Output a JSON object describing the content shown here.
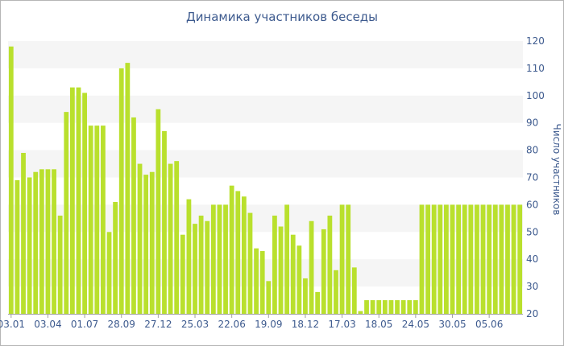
{
  "chart_data": {
    "type": "bar",
    "title": "Динамика участников беседы",
    "xlabel": "",
    "ylabel": "Число участников",
    "ylim": [
      20,
      120
    ],
    "yticks": [
      20,
      30,
      40,
      50,
      60,
      70,
      80,
      90,
      100,
      110,
      120
    ],
    "y_axis_position": "right",
    "grid": "alternating horizontal bands",
    "xtick_labels": [
      "03.01",
      "03.04",
      "01.07",
      "28.09",
      "27.12",
      "25.03",
      "22.06",
      "19.09",
      "18.12",
      "17.03",
      "18.05",
      "24.05",
      "30.05",
      "05.06"
    ],
    "xtick_bar_index": [
      0,
      6,
      12,
      18,
      24,
      30,
      36,
      42,
      48,
      54,
      60,
      66,
      72,
      78
    ],
    "values": [
      118,
      69,
      79,
      70,
      72,
      73,
      73,
      73,
      56,
      94,
      103,
      103,
      101,
      89,
      89,
      89,
      50,
      61,
      110,
      112,
      92,
      75,
      71,
      72,
      95,
      87,
      75,
      76,
      49,
      62,
      53,
      56,
      54,
      60,
      60,
      60,
      67,
      65,
      63,
      57,
      44,
      43,
      32,
      56,
      52,
      60,
      49,
      45,
      33,
      54,
      28,
      51,
      56,
      36,
      60,
      60,
      37,
      21,
      25,
      25,
      25,
      25,
      25,
      25,
      25,
      25,
      25,
      60,
      60,
      60,
      60,
      60,
      60,
      60,
      60,
      60,
      60,
      60,
      60,
      60,
      60,
      60,
      60,
      60
    ],
    "bar_color": "#b9e02d"
  }
}
